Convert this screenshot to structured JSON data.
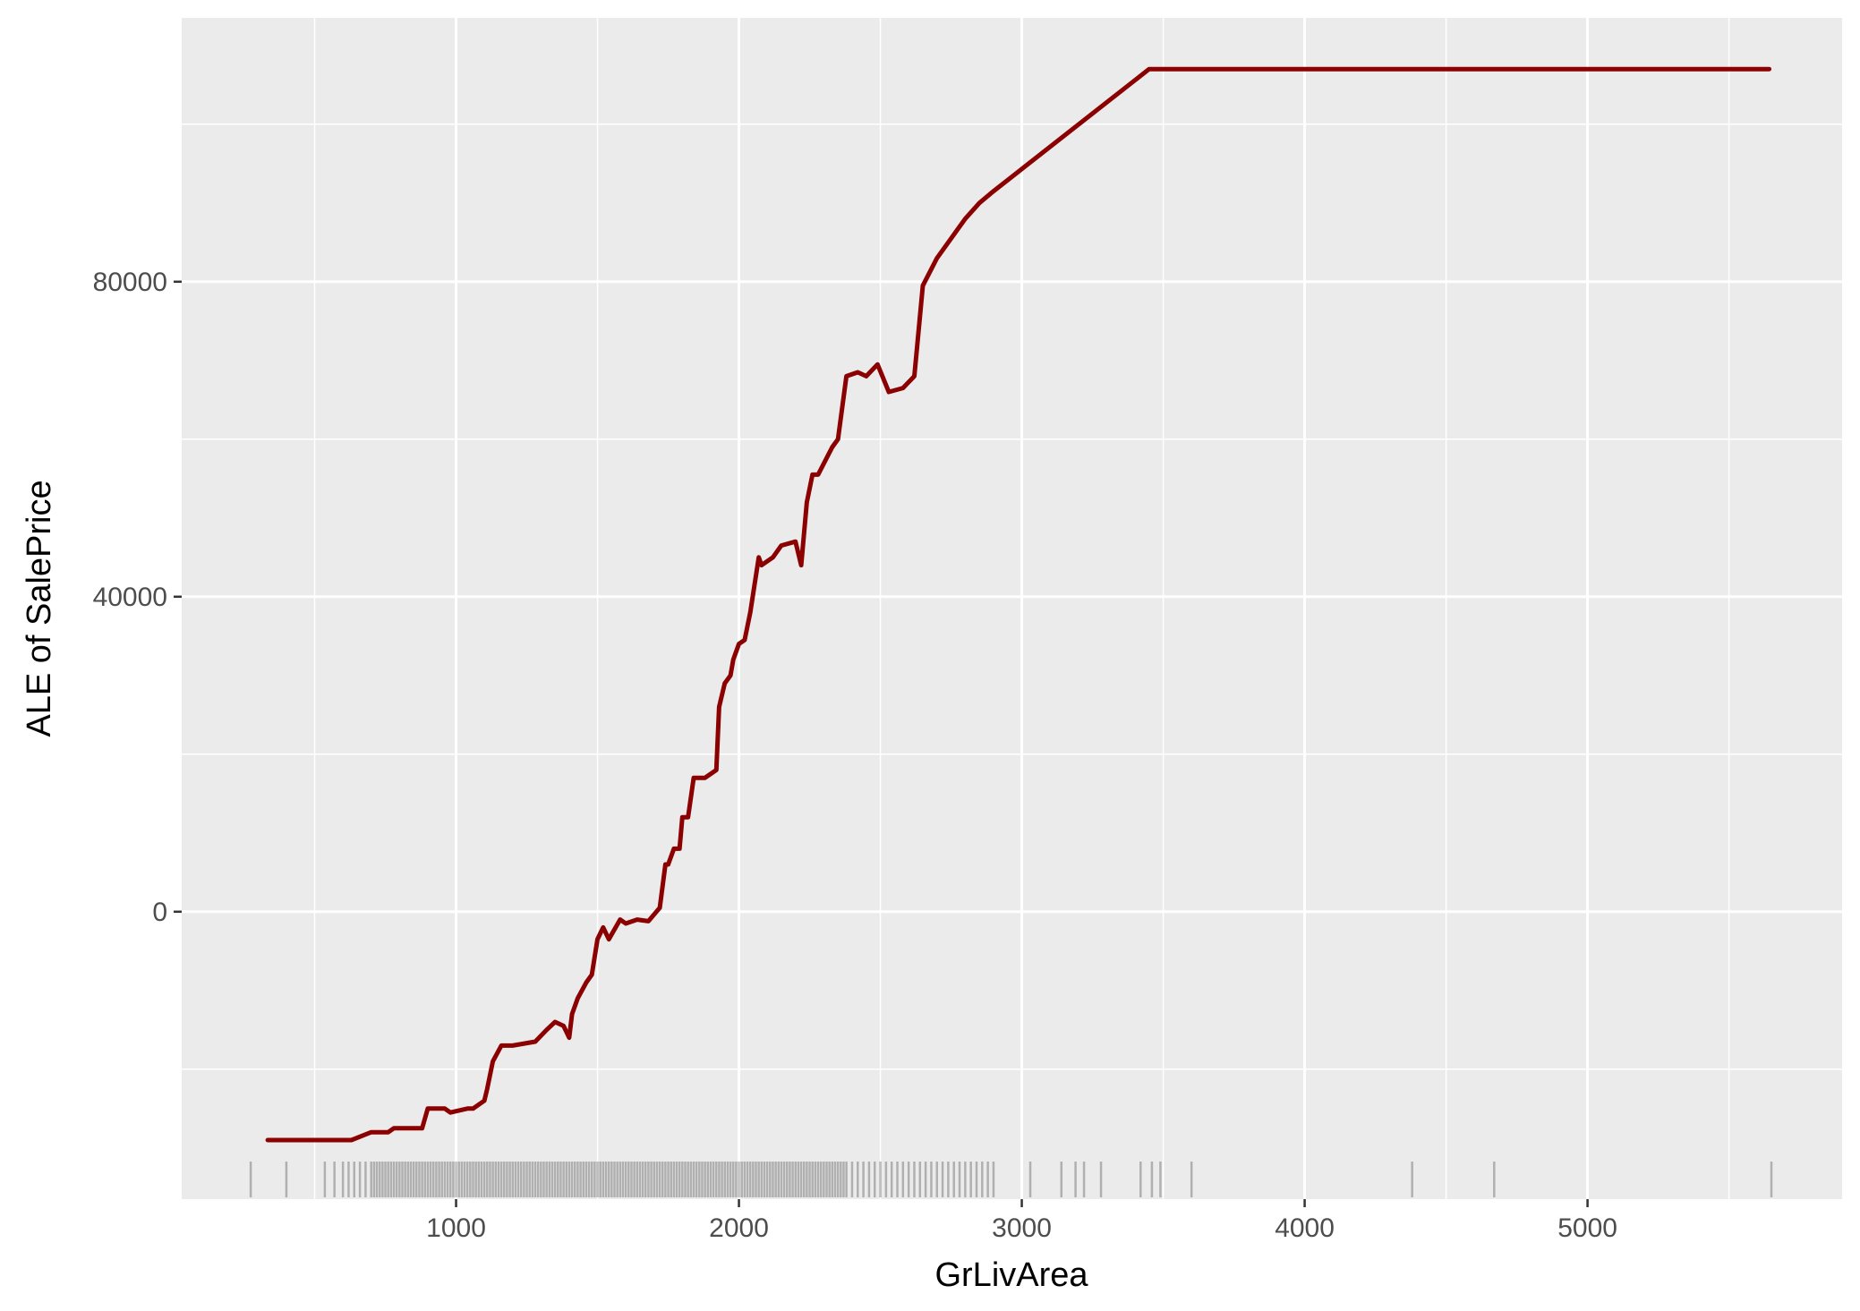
{
  "chart_data": {
    "type": "line",
    "title": "",
    "xlabel": "GrLivArea",
    "ylabel": "ALE of SalePrice",
    "xlim": [
      30,
      5900
    ],
    "ylim": [
      -36500,
      113500
    ],
    "x_ticks": [
      1000,
      2000,
      3000,
      4000,
      5000
    ],
    "x_tick_labels": [
      "1000",
      "2000",
      "3000",
      "4000",
      "5000"
    ],
    "x_minor_ticks": [
      500,
      1500,
      2500,
      3500,
      4500,
      5500
    ],
    "y_ticks": [
      0,
      40000,
      80000
    ],
    "y_tick_labels": [
      "0",
      "40000",
      "80000"
    ],
    "y_minor_ticks": [
      -20000,
      20000,
      60000,
      100000
    ],
    "grid": true,
    "legend": "none",
    "colors": {
      "panel_background": "#ebebeb",
      "grid": "#ffffff",
      "line": "#8b0000",
      "rug": "#000000"
    },
    "series": [
      {
        "x": [
          334,
          630,
          700,
          760,
          780,
          880,
          900,
          960,
          980,
          1040,
          1060,
          1100,
          1110,
          1130,
          1160,
          1200,
          1280,
          1320,
          1350,
          1380,
          1400,
          1410,
          1430,
          1460,
          1480,
          1500,
          1520,
          1540,
          1580,
          1600,
          1640,
          1680,
          1720,
          1740,
          1750,
          1770,
          1790,
          1800,
          1820,
          1840,
          1880,
          1920,
          1930,
          1950,
          1970,
          1980,
          2000,
          2020,
          2040,
          2070,
          2080,
          2120,
          2150,
          2200,
          2220,
          2240,
          2260,
          2280,
          2330,
          2350,
          2380,
          2420,
          2450,
          2490,
          2530,
          2580,
          2620,
          2650,
          2700,
          2750,
          2800,
          2850,
          2900,
          3450,
          5642
        ],
        "y": [
          -29000,
          -29000,
          -28000,
          -28000,
          -27500,
          -27500,
          -25000,
          -25000,
          -25500,
          -25000,
          -25000,
          -24000,
          -22500,
          -19000,
          -17000,
          -17000,
          -16500,
          -15000,
          -14000,
          -14500,
          -16000,
          -13000,
          -11000,
          -9000,
          -8000,
          -3500,
          -2000,
          -3500,
          -1000,
          -1500,
          -1000,
          -1200,
          500,
          6000,
          6000,
          8000,
          8000,
          12000,
          12000,
          17000,
          17000,
          18000,
          26000,
          29000,
          30000,
          32000,
          34000,
          34500,
          38000,
          45000,
          44000,
          45000,
          46500,
          47000,
          44000,
          52000,
          55500,
          55500,
          59000,
          60000,
          68000,
          68500,
          68000,
          69500,
          66000,
          66500,
          68000,
          79500,
          83000,
          85500,
          88000,
          90000,
          91500,
          107000,
          107000
        ]
      }
    ],
    "rug_x": [
      274,
      400,
      536,
      570,
      600,
      620,
      640,
      660,
      680,
      700,
      710,
      720,
      730,
      740,
      750,
      760,
      770,
      780,
      790,
      800,
      810,
      820,
      830,
      840,
      850,
      860,
      870,
      880,
      890,
      900,
      910,
      920,
      930,
      940,
      950,
      960,
      970,
      980,
      990,
      1000,
      1010,
      1020,
      1030,
      1040,
      1050,
      1060,
      1070,
      1080,
      1090,
      1100,
      1110,
      1120,
      1130,
      1140,
      1150,
      1160,
      1170,
      1180,
      1190,
      1200,
      1210,
      1220,
      1230,
      1240,
      1250,
      1260,
      1270,
      1280,
      1290,
      1300,
      1310,
      1320,
      1330,
      1340,
      1350,
      1360,
      1370,
      1380,
      1390,
      1400,
      1410,
      1420,
      1430,
      1440,
      1450,
      1460,
      1470,
      1480,
      1490,
      1500,
      1510,
      1520,
      1530,
      1540,
      1550,
      1560,
      1570,
      1580,
      1590,
      1600,
      1610,
      1620,
      1630,
      1640,
      1650,
      1660,
      1670,
      1680,
      1690,
      1700,
      1710,
      1720,
      1730,
      1740,
      1750,
      1760,
      1770,
      1780,
      1790,
      1800,
      1810,
      1820,
      1830,
      1840,
      1850,
      1860,
      1870,
      1880,
      1890,
      1900,
      1910,
      1920,
      1930,
      1940,
      1950,
      1960,
      1970,
      1980,
      1990,
      2000,
      2010,
      2020,
      2030,
      2040,
      2050,
      2060,
      2070,
      2080,
      2090,
      2100,
      2110,
      2120,
      2130,
      2140,
      2150,
      2160,
      2170,
      2180,
      2190,
      2200,
      2210,
      2220,
      2230,
      2240,
      2250,
      2260,
      2270,
      2280,
      2290,
      2300,
      2310,
      2320,
      2330,
      2340,
      2350,
      2360,
      2370,
      2380,
      2400,
      2420,
      2440,
      2460,
      2480,
      2500,
      2520,
      2540,
      2560,
      2580,
      2600,
      2620,
      2640,
      2660,
      2680,
      2700,
      2720,
      2740,
      2760,
      2780,
      2800,
      2820,
      2840,
      2860,
      2880,
      2900,
      3030,
      3140,
      3190,
      3220,
      3280,
      3420,
      3460,
      3490,
      3600,
      4380,
      4670,
      5650
    ]
  }
}
